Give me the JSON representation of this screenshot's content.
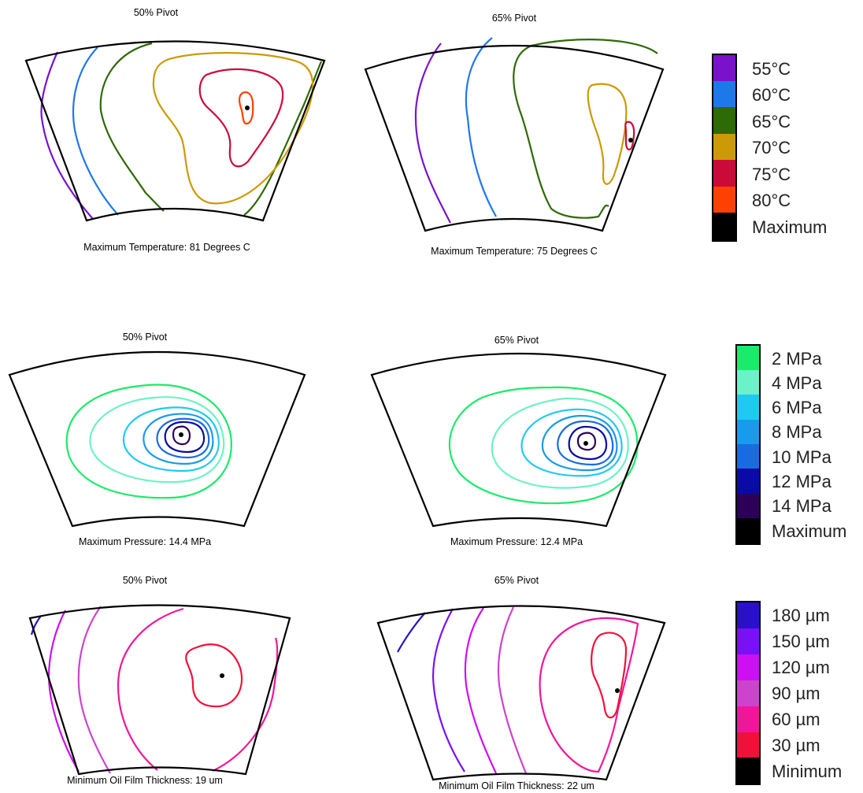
{
  "rows": [
    {
      "panels": [
        {
          "title": "50% Pivot",
          "caption": "Maximum Temperature: 81 Degrees C"
        },
        {
          "title": "65% Pivot",
          "caption": "Maximum Temperature: 75 Degrees C"
        }
      ],
      "legend": [
        {
          "label": "55°C",
          "color": "#7a12cc"
        },
        {
          "label": "60°C",
          "color": "#1f78ea"
        },
        {
          "label": "65°C",
          "color": "#2e6a06"
        },
        {
          "label": "70°C",
          "color": "#cc9a06"
        },
        {
          "label": "75°C",
          "color": "#cc0a3a"
        },
        {
          "label": "80°C",
          "color": "#ff4000"
        },
        {
          "label": "Maximum",
          "color": "#000000"
        }
      ]
    },
    {
      "panels": [
        {
          "title": "50% Pivot",
          "caption": "Maximum Pressure: 14.4 MPa"
        },
        {
          "title": "65% Pivot",
          "caption": "Maximum Pressure: 12.4 MPa"
        }
      ],
      "legend": [
        {
          "label": "2 MPa",
          "color": "#1aeb6a"
        },
        {
          "label": "4 MPa",
          "color": "#6cf2c8"
        },
        {
          "label": "6 MPa",
          "color": "#1fcaf0"
        },
        {
          "label": "8 MPa",
          "color": "#1a9aea"
        },
        {
          "label": "10 MPa",
          "color": "#1a6be0"
        },
        {
          "label": "12 MPa",
          "color": "#0a0aa6"
        },
        {
          "label": "14 MPa",
          "color": "#2c0058"
        },
        {
          "label": "Maximum",
          "color": "#000000"
        }
      ]
    },
    {
      "panels": [
        {
          "title": "50% Pivot",
          "caption": "Minimum Oil Film Thickness: 19 um"
        },
        {
          "title": "65% Pivot",
          "caption": "Minimum Oil Film Thickness: 22 um"
        }
      ],
      "legend": [
        {
          "label": "180 µm",
          "color": "#2a10c8"
        },
        {
          "label": "150 µm",
          "color": "#7a10f6"
        },
        {
          "label": "120 µm",
          "color": "#cc10f0"
        },
        {
          "label": "90 µm",
          "color": "#cc44cc"
        },
        {
          "label": "60 µm",
          "color": "#f0169a"
        },
        {
          "label": "30 µm",
          "color": "#f0103a"
        },
        {
          "label": "Minimum",
          "color": "#000000"
        }
      ]
    }
  ]
}
